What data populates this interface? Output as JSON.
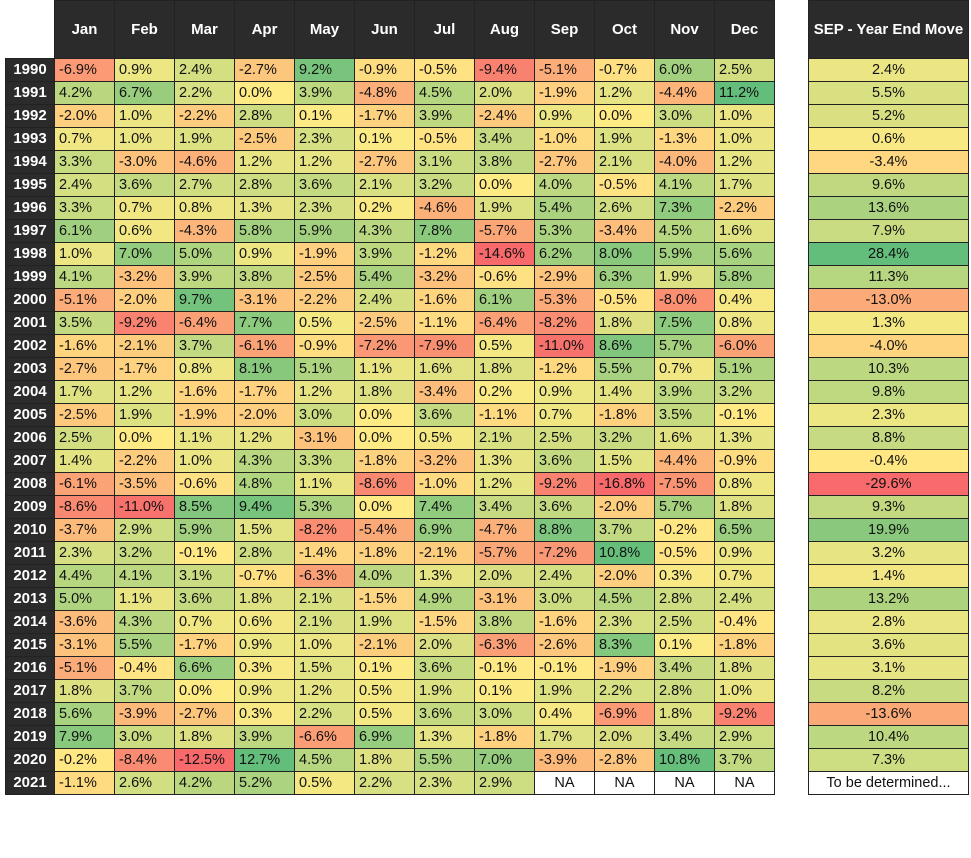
{
  "chart_data": {
    "type": "table",
    "months": [
      "Jan",
      "Feb",
      "Mar",
      "Apr",
      "May",
      "Jun",
      "Jul",
      "Aug",
      "Sep",
      "Oct",
      "Nov",
      "Dec"
    ],
    "move_header": "SEP - Year End Move",
    "rows": [
      {
        "year": "1990",
        "values": [
          "-6.9%",
          "0.9%",
          "2.4%",
          "-2.7%",
          "9.2%",
          "-0.9%",
          "-0.5%",
          "-9.4%",
          "-5.1%",
          "-0.7%",
          "6.0%",
          "2.5%"
        ],
        "move": "2.4%"
      },
      {
        "year": "1991",
        "values": [
          "4.2%",
          "6.7%",
          "2.2%",
          "0.0%",
          "3.9%",
          "-4.8%",
          "4.5%",
          "2.0%",
          "-1.9%",
          "1.2%",
          "-4.4%",
          "11.2%"
        ],
        "move": "5.5%"
      },
      {
        "year": "1992",
        "values": [
          "-2.0%",
          "1.0%",
          "-2.2%",
          "2.8%",
          "0.1%",
          "-1.7%",
          "3.9%",
          "-2.4%",
          "0.9%",
          "0.0%",
          "3.0%",
          "1.0%"
        ],
        "move": "5.2%"
      },
      {
        "year": "1993",
        "values": [
          "0.7%",
          "1.0%",
          "1.9%",
          "-2.5%",
          "2.3%",
          "0.1%",
          "-0.5%",
          "3.4%",
          "-1.0%",
          "1.9%",
          "-1.3%",
          "1.0%"
        ],
        "move": "0.6%"
      },
      {
        "year": "1994",
        "values": [
          "3.3%",
          "-3.0%",
          "-4.6%",
          "1.2%",
          "1.2%",
          "-2.7%",
          "3.1%",
          "3.8%",
          "-2.7%",
          "2.1%",
          "-4.0%",
          "1.2%"
        ],
        "move": "-3.4%"
      },
      {
        "year": "1995",
        "values": [
          "2.4%",
          "3.6%",
          "2.7%",
          "2.8%",
          "3.6%",
          "2.1%",
          "3.2%",
          "0.0%",
          "4.0%",
          "-0.5%",
          "4.1%",
          "1.7%"
        ],
        "move": "9.6%"
      },
      {
        "year": "1996",
        "values": [
          "3.3%",
          "0.7%",
          "0.8%",
          "1.3%",
          "2.3%",
          "0.2%",
          "-4.6%",
          "1.9%",
          "5.4%",
          "2.6%",
          "7.3%",
          "-2.2%"
        ],
        "move": "13.6%"
      },
      {
        "year": "1997",
        "values": [
          "6.1%",
          "0.6%",
          "-4.3%",
          "5.8%",
          "5.9%",
          "4.3%",
          "7.8%",
          "-5.7%",
          "5.3%",
          "-3.4%",
          "4.5%",
          "1.6%"
        ],
        "move": "7.9%"
      },
      {
        "year": "1998",
        "values": [
          "1.0%",
          "7.0%",
          "5.0%",
          "0.9%",
          "-1.9%",
          "3.9%",
          "-1.2%",
          "-14.6%",
          "6.2%",
          "8.0%",
          "5.9%",
          "5.6%"
        ],
        "move": "28.4%"
      },
      {
        "year": "1999",
        "values": [
          "4.1%",
          "-3.2%",
          "3.9%",
          "3.8%",
          "-2.5%",
          "5.4%",
          "-3.2%",
          "-0.6%",
          "-2.9%",
          "6.3%",
          "1.9%",
          "5.8%"
        ],
        "move": "11.3%"
      },
      {
        "year": "2000",
        "values": [
          "-5.1%",
          "-2.0%",
          "9.7%",
          "-3.1%",
          "-2.2%",
          "2.4%",
          "-1.6%",
          "6.1%",
          "-5.3%",
          "-0.5%",
          "-8.0%",
          "0.4%"
        ],
        "move": "-13.0%"
      },
      {
        "year": "2001",
        "values": [
          "3.5%",
          "-9.2%",
          "-6.4%",
          "7.7%",
          "0.5%",
          "-2.5%",
          "-1.1%",
          "-6.4%",
          "-8.2%",
          "1.8%",
          "7.5%",
          "0.8%"
        ],
        "move": "1.3%"
      },
      {
        "year": "2002",
        "values": [
          "-1.6%",
          "-2.1%",
          "3.7%",
          "-6.1%",
          "-0.9%",
          "-7.2%",
          "-7.9%",
          "0.5%",
          "-11.0%",
          "8.6%",
          "5.7%",
          "-6.0%"
        ],
        "move": "-4.0%"
      },
      {
        "year": "2003",
        "values": [
          "-2.7%",
          "-1.7%",
          "0.8%",
          "8.1%",
          "5.1%",
          "1.1%",
          "1.6%",
          "1.8%",
          "-1.2%",
          "5.5%",
          "0.7%",
          "5.1%"
        ],
        "move": "10.3%"
      },
      {
        "year": "2004",
        "values": [
          "1.7%",
          "1.2%",
          "-1.6%",
          "-1.7%",
          "1.2%",
          "1.8%",
          "-3.4%",
          "0.2%",
          "0.9%",
          "1.4%",
          "3.9%",
          "3.2%"
        ],
        "move": "9.8%"
      },
      {
        "year": "2005",
        "values": [
          "-2.5%",
          "1.9%",
          "-1.9%",
          "-2.0%",
          "3.0%",
          "0.0%",
          "3.6%",
          "-1.1%",
          "0.7%",
          "-1.8%",
          "3.5%",
          "-0.1%"
        ],
        "move": "2.3%"
      },
      {
        "year": "2006",
        "values": [
          "2.5%",
          "0.0%",
          "1.1%",
          "1.2%",
          "-3.1%",
          "0.0%",
          "0.5%",
          "2.1%",
          "2.5%",
          "3.2%",
          "1.6%",
          "1.3%"
        ],
        "move": "8.8%"
      },
      {
        "year": "2007",
        "values": [
          "1.4%",
          "-2.2%",
          "1.0%",
          "4.3%",
          "3.3%",
          "-1.8%",
          "-3.2%",
          "1.3%",
          "3.6%",
          "1.5%",
          "-4.4%",
          "-0.9%"
        ],
        "move": "-0.4%"
      },
      {
        "year": "2008",
        "values": [
          "-6.1%",
          "-3.5%",
          "-0.6%",
          "4.8%",
          "1.1%",
          "-8.6%",
          "-1.0%",
          "1.2%",
          "-9.2%",
          "-16.8%",
          "-7.5%",
          "0.8%"
        ],
        "move": "-29.6%"
      },
      {
        "year": "2009",
        "values": [
          "-8.6%",
          "-11.0%",
          "8.5%",
          "9.4%",
          "5.3%",
          "0.0%",
          "7.4%",
          "3.4%",
          "3.6%",
          "-2.0%",
          "5.7%",
          "1.8%"
        ],
        "move": "9.3%"
      },
      {
        "year": "2010",
        "values": [
          "-3.7%",
          "2.9%",
          "5.9%",
          "1.5%",
          "-8.2%",
          "-5.4%",
          "6.9%",
          "-4.7%",
          "8.8%",
          "3.7%",
          "-0.2%",
          "6.5%"
        ],
        "move": "19.9%"
      },
      {
        "year": "2011",
        "values": [
          "2.3%",
          "3.2%",
          "-0.1%",
          "2.8%",
          "-1.4%",
          "-1.8%",
          "-2.1%",
          "-5.7%",
          "-7.2%",
          "10.8%",
          "-0.5%",
          "0.9%"
        ],
        "move": "3.2%"
      },
      {
        "year": "2012",
        "values": [
          "4.4%",
          "4.1%",
          "3.1%",
          "-0.7%",
          "-6.3%",
          "4.0%",
          "1.3%",
          "2.0%",
          "2.4%",
          "-2.0%",
          "0.3%",
          "0.7%"
        ],
        "move": "1.4%"
      },
      {
        "year": "2013",
        "values": [
          "5.0%",
          "1.1%",
          "3.6%",
          "1.8%",
          "2.1%",
          "-1.5%",
          "4.9%",
          "-3.1%",
          "3.0%",
          "4.5%",
          "2.8%",
          "2.4%"
        ],
        "move": "13.2%"
      },
      {
        "year": "2014",
        "values": [
          "-3.6%",
          "4.3%",
          "0.7%",
          "0.6%",
          "2.1%",
          "1.9%",
          "-1.5%",
          "3.8%",
          "-1.6%",
          "2.3%",
          "2.5%",
          "-0.4%"
        ],
        "move": "2.8%"
      },
      {
        "year": "2015",
        "values": [
          "-3.1%",
          "5.5%",
          "-1.7%",
          "0.9%",
          "1.0%",
          "-2.1%",
          "2.0%",
          "-6.3%",
          "-2.6%",
          "8.3%",
          "0.1%",
          "-1.8%"
        ],
        "move": "3.6%"
      },
      {
        "year": "2016",
        "values": [
          "-5.1%",
          "-0.4%",
          "6.6%",
          "0.3%",
          "1.5%",
          "0.1%",
          "3.6%",
          "-0.1%",
          "-0.1%",
          "-1.9%",
          "3.4%",
          "1.8%"
        ],
        "move": "3.1%"
      },
      {
        "year": "2017",
        "values": [
          "1.8%",
          "3.7%",
          "0.0%",
          "0.9%",
          "1.2%",
          "0.5%",
          "1.9%",
          "0.1%",
          "1.9%",
          "2.2%",
          "2.8%",
          "1.0%"
        ],
        "move": "8.2%"
      },
      {
        "year": "2018",
        "values": [
          "5.6%",
          "-3.9%",
          "-2.7%",
          "0.3%",
          "2.2%",
          "0.5%",
          "3.6%",
          "3.0%",
          "0.4%",
          "-6.9%",
          "1.8%",
          "-9.2%"
        ],
        "move": "-13.6%"
      },
      {
        "year": "2019",
        "values": [
          "7.9%",
          "3.0%",
          "1.8%",
          "3.9%",
          "-6.6%",
          "6.9%",
          "1.3%",
          "-1.8%",
          "1.7%",
          "2.0%",
          "3.4%",
          "2.9%"
        ],
        "move": "10.4%"
      },
      {
        "year": "2020",
        "values": [
          "-0.2%",
          "-8.4%",
          "-12.5%",
          "12.7%",
          "4.5%",
          "1.8%",
          "5.5%",
          "7.0%",
          "-3.9%",
          "-2.8%",
          "10.8%",
          "3.7%"
        ],
        "move": "7.3%"
      },
      {
        "year": "2021",
        "values": [
          "-1.1%",
          "2.6%",
          "4.2%",
          "5.2%",
          "0.5%",
          "2.2%",
          "2.3%",
          "2.9%",
          "NA",
          "NA",
          "NA",
          "NA"
        ],
        "move": "To be determined..."
      }
    ]
  }
}
